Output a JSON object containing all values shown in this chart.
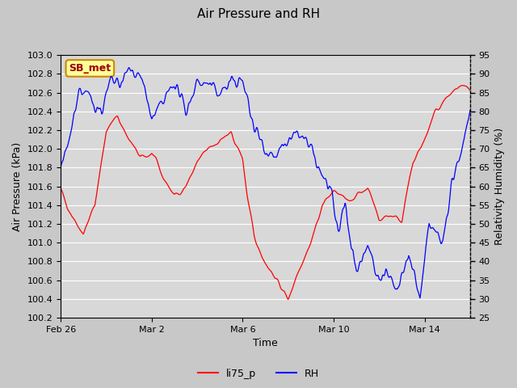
{
  "title": "Air Pressure and RH",
  "xlabel": "Time",
  "ylabel_left": "Air Pressure (kPa)",
  "ylabel_right": "Relativity Humidity (%)",
  "label_box": "SB_met",
  "label_box_color": "#ffff99",
  "label_box_edge": "#cc8800",
  "label_box_text_color": "#990000",
  "left_ylim": [
    100.2,
    103.0
  ],
  "right_ylim": [
    25,
    95
  ],
  "left_yticks": [
    100.2,
    100.4,
    100.6,
    100.8,
    101.0,
    101.2,
    101.4,
    101.6,
    101.8,
    102.0,
    102.2,
    102.4,
    102.6,
    102.8,
    103.0
  ],
  "right_yticks": [
    25,
    30,
    35,
    40,
    45,
    50,
    55,
    60,
    65,
    70,
    75,
    80,
    85,
    90,
    95
  ],
  "xtick_labels": [
    "Feb 26",
    "Mar 2",
    "Mar 6",
    "Mar 10",
    "Mar 14"
  ],
  "xtick_positions": [
    0,
    4,
    8,
    12,
    16
  ],
  "line_red": "li75_p",
  "line_blue": "RH",
  "fig_bg_color": "#c8c8c8",
  "plot_bg_color": "#d8d8d8",
  "grid_color": "#ffffff",
  "seed": 42
}
